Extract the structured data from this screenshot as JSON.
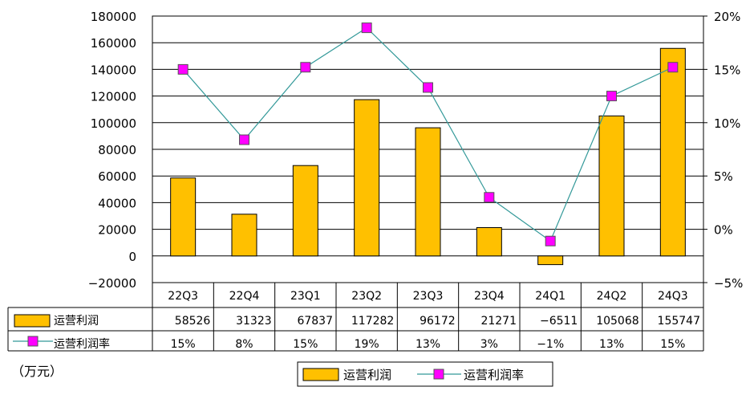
{
  "chart_data": {
    "type": "bar",
    "categories": [
      "22Q3",
      "22Q4",
      "23Q1",
      "23Q2",
      "23Q3",
      "23Q4",
      "24Q1",
      "24Q2",
      "24Q3"
    ],
    "series": [
      {
        "name": "运营利润",
        "type": "bar",
        "axis": "left",
        "values": [
          58526,
          31323,
          67837,
          117282,
          96172,
          21271,
          -6511,
          105068,
          155747
        ],
        "labels": [
          "58526",
          "31323",
          "67837",
          "117282",
          "96172",
          "21271",
          "-6511",
          "105068",
          "155747"
        ],
        "color": "#FFC000"
      },
      {
        "name": "运营利润率",
        "type": "line",
        "axis": "right",
        "values": [
          15,
          8.4,
          15.2,
          18.9,
          13.3,
          3.0,
          -1.1,
          12.5,
          15.2
        ],
        "labels": [
          "15%",
          "8%",
          "15%",
          "19%",
          "13%",
          "3%",
          "-1%",
          "13%",
          "15%"
        ],
        "color": "#FF00FF",
        "line_color": "#339999"
      }
    ],
    "ylim": [
      -20000,
      180000
    ],
    "y_ticks": [
      "-20000",
      "0",
      "20000",
      "40000",
      "60000",
      "80000",
      "100000",
      "120000",
      "140000",
      "160000",
      "180000"
    ],
    "y2lim": [
      -5,
      20
    ],
    "y2_ticks": [
      "-5%",
      "0%",
      "5%",
      "10%",
      "15%",
      "20%"
    ],
    "unit_note": "（万元）",
    "grid": true,
    "legend_position": "bottom-center"
  }
}
